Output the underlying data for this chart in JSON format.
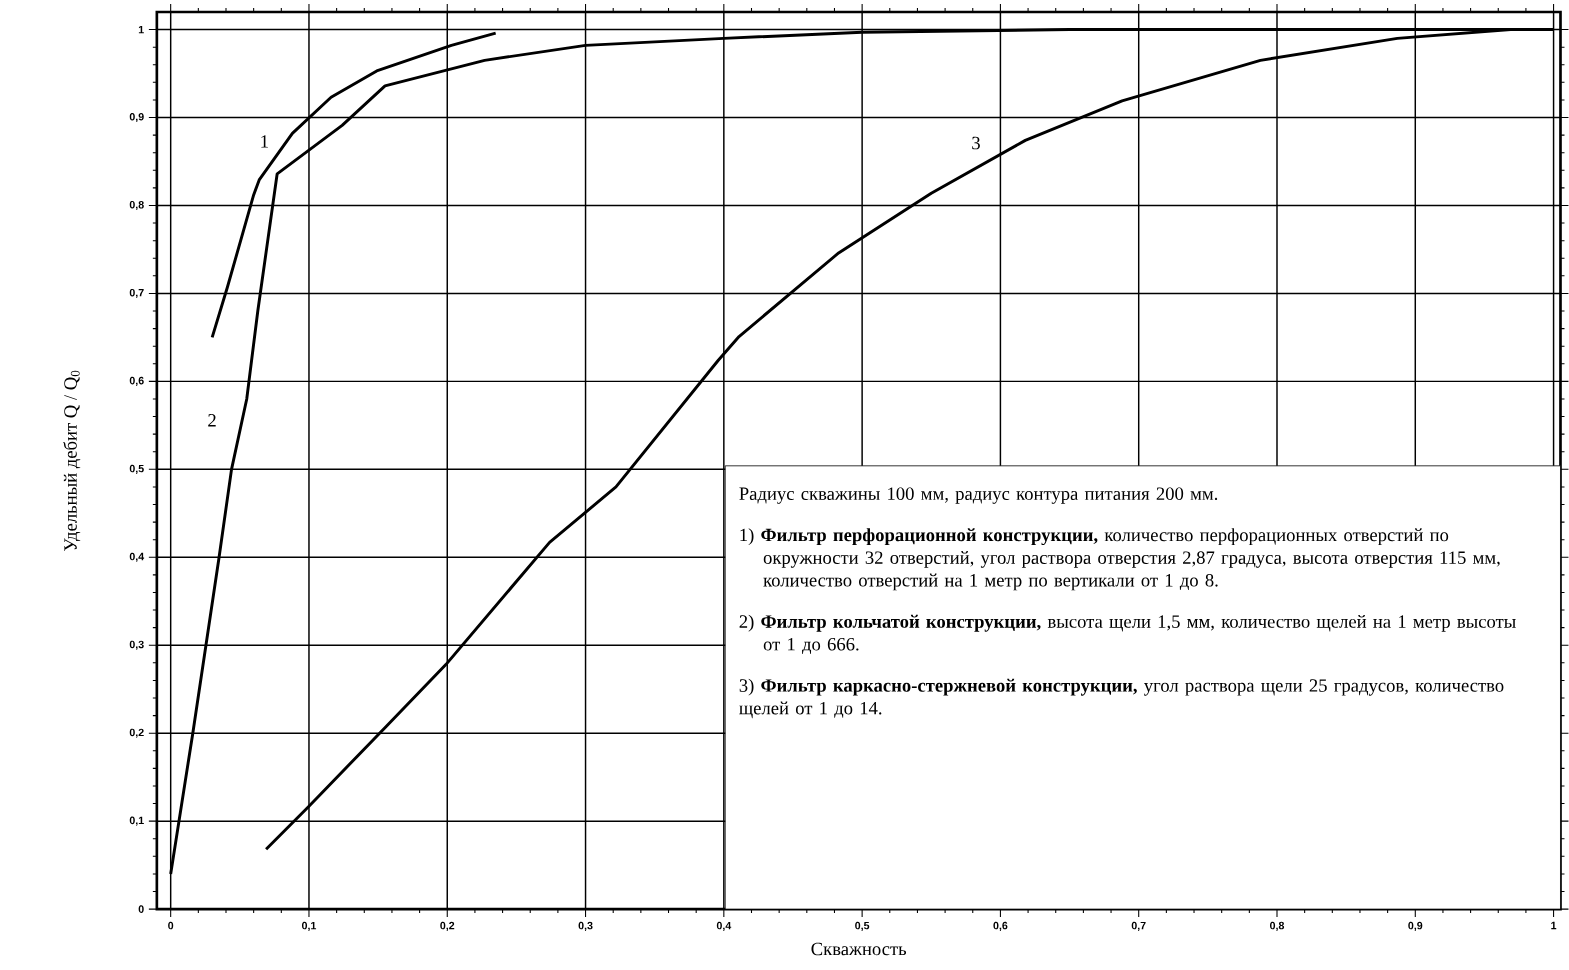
{
  "chart_data": {
    "type": "line",
    "xlabel": "Скважность",
    "ylabel": "Удельный дебит Q / Q$_{0}$",
    "xlim": [
      -0.01,
      1.005
    ],
    "ylim": [
      0,
      1.02
    ],
    "xticks": [
      0,
      {
        "value": 0.1,
        "label": "0,1"
      },
      {
        "value": 0.2,
        "label": "0,2"
      },
      {
        "value": 0.3,
        "label": "0,3"
      },
      {
        "value": 0.4,
        "label": "0,4"
      },
      {
        "value": 0.5,
        "label": "0,5"
      },
      {
        "value": 0.6,
        "label": "0,6"
      },
      {
        "value": 0.7,
        "label": "0,7"
      },
      {
        "value": 0.8,
        "label": "0,8"
      },
      {
        "value": 0.9,
        "label": "0,9"
      },
      1
    ],
    "yticks": [
      0,
      {
        "value": 0.1,
        "label": "0,1"
      },
      {
        "value": 0.2,
        "label": "0,2"
      },
      {
        "value": 0.3,
        "label": "0,3"
      },
      {
        "value": 0.4,
        "label": "0,4"
      },
      {
        "value": 0.5,
        "label": "0,5"
      },
      {
        "value": 0.6,
        "label": "0,6"
      },
      {
        "value": 0.7,
        "label": "0,7"
      },
      {
        "value": 0.8,
        "label": "0,8"
      },
      {
        "value": 0.9,
        "label": "0,9"
      },
      1
    ],
    "grid": true,
    "line_style": "solid",
    "series": [
      {
        "name": "1",
        "color": "#000000",
        "x": [
          0.03,
          0.041,
          0.06,
          0.064,
          0.088,
          0.116,
          0.149,
          0.203,
          0.235
        ],
        "values": [
          0.65,
          0.707,
          0.812,
          0.829,
          0.882,
          0.923,
          0.953,
          0.982,
          0.996
        ]
      },
      {
        "name": "2",
        "color": "#000000",
        "x": [
          0,
          0.016,
          0.035,
          0.044,
          0.055,
          0.063,
          0.077,
          0.124,
          0.155,
          0.227,
          0.3,
          0.4,
          0.5,
          0.65,
          1.0
        ],
        "values": [
          0.04,
          0.2,
          0.4,
          0.5,
          0.58,
          0.68,
          0.836,
          0.891,
          0.936,
          0.965,
          0.982,
          0.99,
          0.997,
          1.0,
          1.0
        ]
      },
      {
        "name": "3",
        "color": "#000000",
        "x": [
          0.069,
          0.1,
          0.156,
          0.199,
          0.274,
          0.322,
          0.396,
          0.411,
          0.483,
          0.55,
          0.618,
          0.688,
          0.788,
          0.887,
          0.969,
          1.0
        ],
        "values": [
          0.068,
          0.117,
          0.208,
          0.278,
          0.417,
          0.48,
          0.624,
          0.651,
          0.746,
          0.814,
          0.874,
          0.919,
          0.965,
          0.99,
          1.0,
          1.0
        ]
      }
    ],
    "annotations": [
      "Радиус скважины 100 мм, радиус контура питания 200 мм.",
      "1) **Фильтр перфорационной конструкции,** количество перфорационных отверстий по окружности 32 отверстий, угол раствора отверстия 2,87 градуса, высота отверстия 115 мм, количество отверстий на 1 метр по вертикали от 1 до 8.",
      "2) **Фильтр кольчатой конструкции,** высота щели 1,5 мм, количество щелей на 1 метр высоты от 1 до 666.",
      "3) **Фильтр каркасно-стержневой конструкции,** угол раствора щели 25 градусов, количество щелей от 1 до 14."
    ]
  }
}
